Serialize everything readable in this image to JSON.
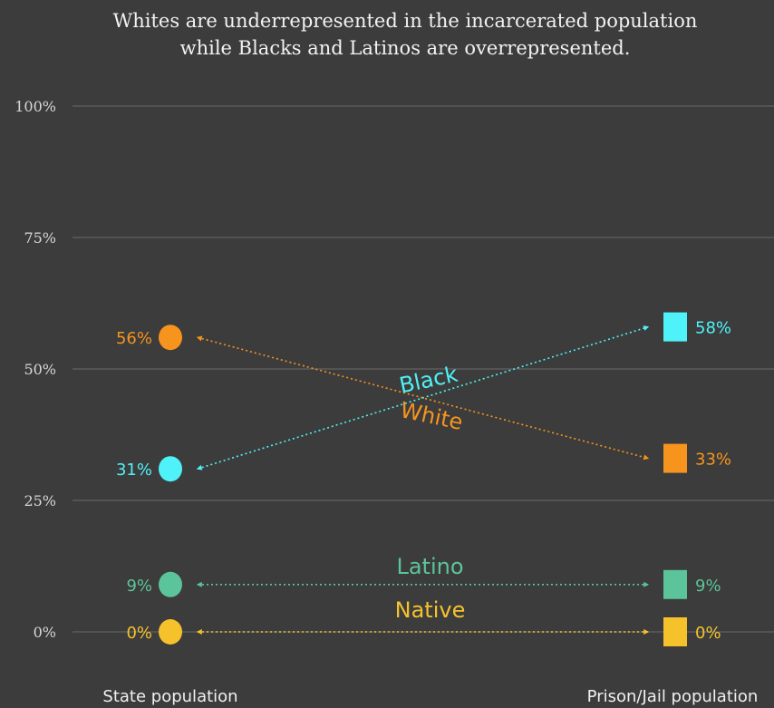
{
  "chart_data": {
    "type": "scatter",
    "title_lines": [
      "Whites are underrepresented in the incarcerated population",
      "while Blacks and Latinos are overrepresented."
    ],
    "categories": [
      "State population",
      "Prison/Jail population"
    ],
    "ylim": [
      0,
      100
    ],
    "yticks": [
      {
        "value": 100,
        "label": "100%"
      },
      {
        "value": 75,
        "label": "75%"
      },
      {
        "value": 50,
        "label": "50%"
      },
      {
        "value": 25,
        "label": "25%"
      },
      {
        "value": 0,
        "label": "0%"
      }
    ],
    "grid": true,
    "series": [
      {
        "name": "White",
        "color": "#f7941d",
        "values": [
          56,
          33
        ],
        "labels": [
          "56%",
          "33%"
        ]
      },
      {
        "name": "Black",
        "color": "#4ff2f8",
        "values": [
          31,
          58
        ],
        "labels": [
          "31%",
          "58%"
        ]
      },
      {
        "name": "Latino",
        "color": "#5cc49a",
        "values": [
          9,
          9
        ],
        "labels": [
          "9%",
          "9%"
        ]
      },
      {
        "name": "Native",
        "color": "#f6c22b",
        "values": [
          0,
          0
        ],
        "labels": [
          "0%",
          "0%"
        ]
      }
    ]
  }
}
